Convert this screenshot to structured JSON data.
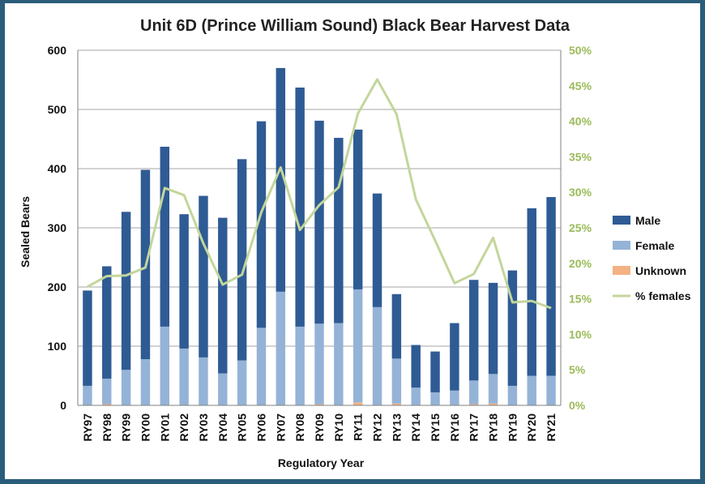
{
  "chart_data": {
    "type": "bar",
    "stacked": true,
    "title": "Unit 6D (Prince William Sound) Black Bear Harvest Data",
    "xlabel": "Regulatory Year",
    "ylabel": "Sealed Bears",
    "ylim": [
      0,
      600
    ],
    "yticks": [
      "0",
      "100",
      "200",
      "300",
      "400",
      "500",
      "600"
    ],
    "y2lim": [
      0,
      0.5
    ],
    "y2ticks": [
      "0%",
      "5%",
      "10%",
      "15%",
      "20%",
      "25%",
      "30%",
      "35%",
      "40%",
      "45%",
      "50%"
    ],
    "grid": true,
    "legend_position": "right",
    "categories": [
      "RY97",
      "RY98",
      "RY99",
      "RY00",
      "RY01",
      "RY02",
      "RY03",
      "RY04",
      "RY05",
      "RY06",
      "RY07",
      "RY08",
      "RY09",
      "RY10",
      "RY11",
      "RY12",
      "RY13",
      "RY14",
      "RY15",
      "RY16",
      "RY17",
      "RY18",
      "RY19",
      "RY20",
      "RY21"
    ],
    "series": [
      {
        "name": "Unknown",
        "color": "#f4b183",
        "axis": "left",
        "values": [
          0,
          2,
          0,
          0,
          0,
          0,
          0,
          0,
          0,
          0,
          0,
          0,
          2,
          0,
          5,
          0,
          3,
          0,
          0,
          0,
          2,
          3,
          0,
          0,
          0
        ]
      },
      {
        "name": "Female",
        "color": "#95b3d7",
        "axis": "left",
        "values": [
          33,
          43,
          60,
          78,
          133,
          96,
          81,
          54,
          76,
          131,
          192,
          133,
          136,
          139,
          191,
          166,
          76,
          30,
          22,
          25,
          40,
          50,
          33,
          50,
          50
        ]
      },
      {
        "name": "Male",
        "color": "#2f5b94",
        "axis": "left",
        "values": [
          161,
          190,
          267,
          320,
          304,
          227,
          273,
          263,
          340,
          349,
          378,
          404,
          343,
          313,
          270,
          192,
          109,
          72,
          69,
          114,
          170,
          154,
          195,
          283,
          302
        ]
      },
      {
        "name": "% females",
        "color": "#c3d69b",
        "axis": "right",
        "line": true,
        "values": [
          0.167,
          0.182,
          0.183,
          0.194,
          0.306,
          0.296,
          0.228,
          0.17,
          0.184,
          0.272,
          0.335,
          0.247,
          0.282,
          0.307,
          0.411,
          0.459,
          0.41,
          0.29,
          0.232,
          0.172,
          0.185,
          0.236,
          0.145,
          0.147,
          0.137
        ]
      }
    ]
  }
}
